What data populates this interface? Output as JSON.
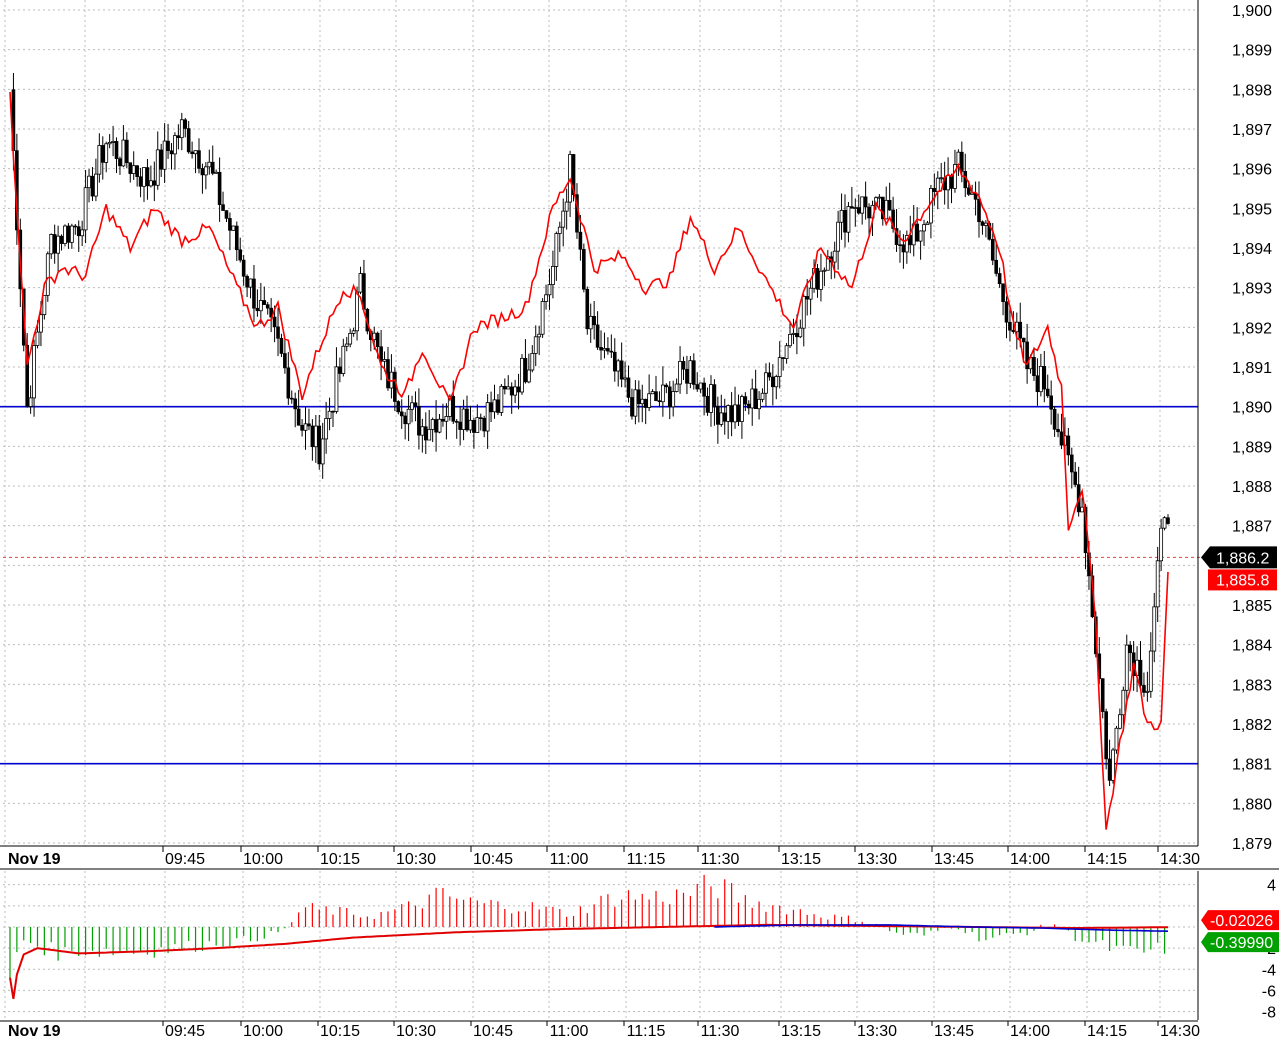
{
  "chart_data": [
    {
      "type": "candlestick",
      "panel": "price",
      "date_label": "Nov 19",
      "x_ticks": [
        "09:45",
        "10:00",
        "10:15",
        "10:30",
        "10:45",
        "11:00",
        "11:15",
        "11:30",
        "13:15",
        "13:30",
        "13:45",
        "14:00",
        "14:15",
        "14:30"
      ],
      "y_ticks": [
        "1,900",
        "1,899",
        "1,898",
        "1,897",
        "1,896",
        "1,895",
        "1,894",
        "1,893",
        "1,892",
        "1,891",
        "1,890",
        "1,889",
        "1,888",
        "1,887",
        "1,885",
        "1,884",
        "1,883",
        "1,882",
        "1,881",
        "1,880",
        "1,879"
      ],
      "ylim": [
        1879,
        1900
      ],
      "grid": true,
      "horizontal_lines": [
        1890,
        1881
      ],
      "last_price_line": 1886.2,
      "badges": [
        {
          "text": "1,886.2",
          "color": "#000000"
        },
        {
          "text": "1,885.8",
          "color": "#ff0000"
        }
      ],
      "overlay_series_color": "#ff0000",
      "candle_color": "#000000",
      "close_anchors": [
        [
          0,
          1898.0
        ],
        [
          5,
          1890.0
        ],
        [
          12,
          1894.2
        ],
        [
          20,
          1894.6
        ],
        [
          28,
          1896.7
        ],
        [
          40,
          1895.7
        ],
        [
          50,
          1897.0
        ],
        [
          58,
          1896.0
        ],
        [
          70,
          1893.0
        ],
        [
          78,
          1891.5
        ],
        [
          85,
          1889.5
        ],
        [
          90,
          1889.0
        ],
        [
          98,
          1891.5
        ],
        [
          102,
          1893.0
        ],
        [
          108,
          1891.0
        ],
        [
          115,
          1890.0
        ],
        [
          120,
          1889.5
        ],
        [
          128,
          1890.0
        ],
        [
          135,
          1889.7
        ],
        [
          142,
          1890.0
        ],
        [
          150,
          1891.0
        ],
        [
          158,
          1893.5
        ],
        [
          163,
          1896.0
        ],
        [
          168,
          1892.0
        ],
        [
          175,
          1891.0
        ],
        [
          182,
          1890.0
        ],
        [
          190,
          1890.2
        ],
        [
          198,
          1891.0
        ],
        [
          205,
          1890.0
        ],
        [
          212,
          1889.8
        ],
        [
          220,
          1890.5
        ],
        [
          228,
          1892.0
        ],
        [
          236,
          1893.5
        ],
        [
          245,
          1895.2
        ],
        [
          255,
          1894.8
        ],
        [
          262,
          1894.0
        ],
        [
          270,
          1895.5
        ],
        [
          276,
          1896.0
        ],
        [
          282,
          1895.0
        ],
        [
          288,
          1893.0
        ],
        [
          296,
          1891.0
        ],
        [
          302,
          1890.5
        ],
        [
          308,
          1888.5
        ],
        [
          312,
          1887.5
        ],
        [
          316,
          1884.0
        ],
        [
          320,
          1880.5
        ],
        [
          325,
          1884.0
        ],
        [
          331,
          1883.0
        ],
        [
          336,
          1887.5
        ]
      ],
      "overlay_anchors": [
        [
          0,
          1897.8
        ],
        [
          5,
          1891.0
        ],
        [
          10,
          1893.0
        ],
        [
          15,
          1893.5
        ],
        [
          22,
          1893.3
        ],
        [
          28,
          1895.0
        ],
        [
          35,
          1894.0
        ],
        [
          42,
          1895.0
        ],
        [
          50,
          1894.2
        ],
        [
          58,
          1894.5
        ],
        [
          66,
          1893.0
        ],
        [
          72,
          1892.0
        ],
        [
          78,
          1892.5
        ],
        [
          85,
          1890.3
        ],
        [
          90,
          1891.5
        ],
        [
          97,
          1893.0
        ],
        [
          102,
          1892.8
        ],
        [
          108,
          1891.0
        ],
        [
          115,
          1890.3
        ],
        [
          120,
          1891.5
        ],
        [
          128,
          1890.0
        ],
        [
          135,
          1892.0
        ],
        [
          142,
          1892.2
        ],
        [
          150,
          1892.5
        ],
        [
          158,
          1895.0
        ],
        [
          163,
          1895.8
        ],
        [
          170,
          1893.5
        ],
        [
          178,
          1893.8
        ],
        [
          185,
          1893.0
        ],
        [
          192,
          1893.2
        ],
        [
          198,
          1894.8
        ],
        [
          205,
          1893.5
        ],
        [
          212,
          1894.5
        ],
        [
          220,
          1893.2
        ],
        [
          228,
          1892.0
        ],
        [
          236,
          1894.0
        ],
        [
          245,
          1893.0
        ],
        [
          252,
          1895.0
        ],
        [
          260,
          1894.2
        ],
        [
          268,
          1895.2
        ],
        [
          276,
          1896.0
        ],
        [
          282,
          1895.3
        ],
        [
          288,
          1894.0
        ],
        [
          292,
          1892.0
        ],
        [
          296,
          1891.0
        ],
        [
          302,
          1892.0
        ],
        [
          306,
          1890.5
        ],
        [
          308,
          1887.0
        ],
        [
          312,
          1888.0
        ],
        [
          316,
          1884.5
        ],
        [
          319,
          1879.3
        ],
        [
          323,
          1881.5
        ],
        [
          327,
          1883.5
        ],
        [
          331,
          1882.0
        ],
        [
          335,
          1882.0
        ],
        [
          337,
          1885.8
        ]
      ]
    },
    {
      "type": "bar",
      "panel": "oscillator",
      "date_label": "Nov 19",
      "x_ticks": [
        "09:45",
        "10:00",
        "10:15",
        "10:30",
        "10:45",
        "11:00",
        "11:15",
        "11:30",
        "13:15",
        "13:30",
        "13:45",
        "14:00",
        "14:15",
        "14:30"
      ],
      "y_ticks": [
        "4",
        "-2",
        "-4",
        "-6",
        "-8"
      ],
      "ylim": [
        -8.8,
        5.2
      ],
      "grid": true,
      "badges": [
        {
          "text": "-0.02026",
          "color": "#ff0000"
        },
        {
          "text": "-0.39990",
          "color": "#00a000"
        }
      ],
      "positive_color": "#ff0000",
      "negative_color": "#00a000",
      "histogram_anchors": [
        [
          0,
          -5.0
        ],
        [
          1,
          -7.5
        ],
        [
          2,
          -3.0
        ],
        [
          4,
          -1.2
        ],
        [
          10,
          -2.0
        ],
        [
          15,
          -2.5
        ],
        [
          20,
          -2.2
        ],
        [
          30,
          -2.3
        ],
        [
          40,
          -2.2
        ],
        [
          50,
          -2.0
        ],
        [
          60,
          -1.5
        ],
        [
          70,
          -1.2
        ],
        [
          80,
          -0.3
        ],
        [
          85,
          1.8
        ],
        [
          95,
          1.5
        ],
        [
          105,
          1.0
        ],
        [
          115,
          1.8
        ],
        [
          125,
          3.0
        ],
        [
          135,
          2.3
        ],
        [
          145,
          2.0
        ],
        [
          155,
          1.8
        ],
        [
          163,
          1.2
        ],
        [
          170,
          2.2
        ],
        [
          178,
          3.0
        ],
        [
          186,
          2.8
        ],
        [
          195,
          3.0
        ],
        [
          205,
          4.0
        ],
        [
          214,
          2.5
        ],
        [
          222,
          2.0
        ],
        [
          230,
          1.5
        ],
        [
          238,
          1.0
        ],
        [
          245,
          0.8
        ],
        [
          252,
          0.3
        ],
        [
          258,
          -0.6
        ],
        [
          266,
          -0.8
        ],
        [
          275,
          0.2
        ],
        [
          283,
          -1.2
        ],
        [
          290,
          -0.8
        ],
        [
          296,
          -0.5
        ],
        [
          304,
          0.3
        ],
        [
          310,
          -1.0
        ],
        [
          318,
          -1.8
        ],
        [
          325,
          -2.5
        ],
        [
          332,
          -2.3
        ],
        [
          336,
          -2.0
        ]
      ],
      "signal_red_anchors": [
        [
          0,
          -4.8
        ],
        [
          1,
          -6.8
        ],
        [
          2,
          -4.5
        ],
        [
          4,
          -2.6
        ],
        [
          8,
          -2.0
        ],
        [
          20,
          -2.5
        ],
        [
          40,
          -2.3
        ],
        [
          60,
          -2.0
        ],
        [
          80,
          -1.6
        ],
        [
          100,
          -1.0
        ],
        [
          130,
          -0.5
        ],
        [
          160,
          -0.2
        ],
        [
          190,
          0.0
        ],
        [
          220,
          0.2
        ],
        [
          250,
          0.1
        ],
        [
          280,
          0.0
        ],
        [
          310,
          -0.1
        ],
        [
          337,
          -0.0203
        ]
      ],
      "signal_blue_anchors": [
        [
          205,
          0.0
        ],
        [
          230,
          0.2
        ],
        [
          255,
          0.2
        ],
        [
          280,
          0.0
        ],
        [
          300,
          -0.1
        ],
        [
          320,
          -0.3
        ],
        [
          337,
          -0.3999
        ]
      ]
    }
  ]
}
